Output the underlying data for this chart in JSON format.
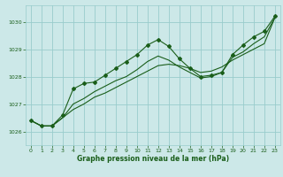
{
  "xlabel": "Graphe pression niveau de la mer (hPa)",
  "bg_color": "#cce8e8",
  "grid_color": "#99cccc",
  "line_color": "#1a5e1a",
  "xlim": [
    -0.5,
    23.5
  ],
  "ylim": [
    1025.5,
    1030.6
  ],
  "yticks": [
    1026,
    1027,
    1028,
    1029,
    1030
  ],
  "xticks": [
    0,
    1,
    2,
    3,
    4,
    5,
    6,
    7,
    8,
    9,
    10,
    11,
    12,
    13,
    14,
    15,
    16,
    17,
    18,
    19,
    20,
    21,
    22,
    23
  ],
  "series1": [
    1026.4,
    1026.2,
    1026.2,
    1026.6,
    1027.55,
    1027.75,
    1027.8,
    1028.05,
    1028.3,
    1028.55,
    1028.8,
    1029.15,
    1029.35,
    1029.1,
    1028.65,
    1028.3,
    1028.0,
    1028.05,
    1028.15,
    1028.8,
    1029.15,
    1029.45,
    1029.65,
    1030.2
  ],
  "series2": [
    1026.4,
    1026.2,
    1026.2,
    1026.5,
    1027.0,
    1027.2,
    1027.45,
    1027.65,
    1027.85,
    1028.0,
    1028.25,
    1028.55,
    1028.75,
    1028.6,
    1028.35,
    1028.15,
    1027.95,
    1028.0,
    1028.15,
    1028.7,
    1028.9,
    1029.2,
    1029.45,
    1030.15
  ],
  "series3": [
    1026.4,
    1026.2,
    1026.2,
    1026.5,
    1026.8,
    1027.0,
    1027.25,
    1027.4,
    1027.6,
    1027.8,
    1028.0,
    1028.2,
    1028.4,
    1028.45,
    1028.4,
    1028.3,
    1028.15,
    1028.2,
    1028.35,
    1028.6,
    1028.8,
    1029.0,
    1029.2,
    1030.15
  ]
}
